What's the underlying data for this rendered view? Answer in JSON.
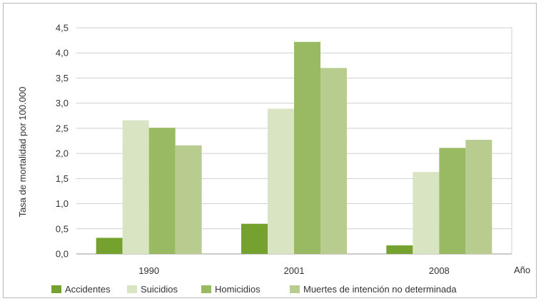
{
  "chart_data": {
    "type": "bar",
    "categories": [
      "1990",
      "2001",
      "2008"
    ],
    "series": [
      {
        "name": "Accidentes",
        "color": "#75a22f",
        "values": [
          0.32,
          0.6,
          0.17
        ]
      },
      {
        "name": "Suicidios",
        "color": "#d8e4c2",
        "values": [
          2.66,
          2.89,
          1.63
        ]
      },
      {
        "name": "Homicidios",
        "color": "#99ba62",
        "values": [
          2.51,
          4.22,
          2.11
        ]
      },
      {
        "name": "Muertes de intención no determinada",
        "color": "#b8cc8f",
        "values": [
          2.16,
          3.7,
          2.27
        ]
      }
    ],
    "yticks": [
      "0,0",
      "0,5",
      "1,0",
      "1,5",
      "2,0",
      "2,5",
      "3,0",
      "3,5",
      "4,0",
      "4,5"
    ],
    "ylim": [
      0,
      4.5
    ],
    "ylabel": "Tasa de mortalidad por 100.000",
    "xlabel": "Año",
    "grid": true,
    "legend_position": "bottom"
  }
}
